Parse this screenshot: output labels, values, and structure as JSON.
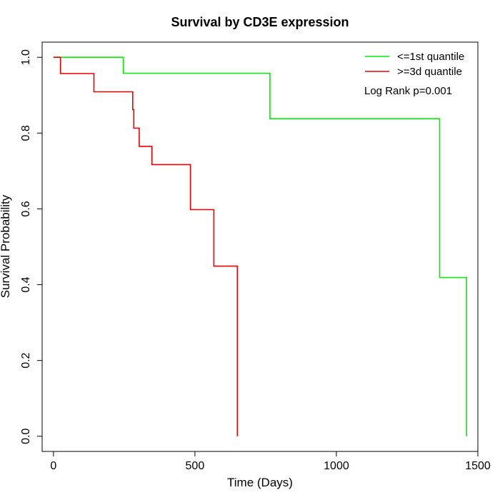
{
  "chart_data": {
    "type": "line",
    "step": true,
    "title": "Survival by CD3E expression",
    "xlabel": "Time (Days)",
    "ylabel": "Survival Probability",
    "xlim": [
      -40,
      1500
    ],
    "ylim": [
      -0.04,
      1.04
    ],
    "x_ticks": [
      0,
      500,
      1000,
      1500
    ],
    "y_ticks": [
      0.0,
      0.2,
      0.4,
      0.6,
      0.8,
      1.0
    ],
    "x_tick_labels": [
      "0",
      "500",
      "1000",
      "1500"
    ],
    "y_tick_labels": [
      "0.0",
      "0.2",
      "0.4",
      "0.6",
      "0.8",
      "1.0"
    ],
    "legend_position": "top-right",
    "annotation": "Log Rank p=0.001",
    "grid": false,
    "series": [
      {
        "name": "<=1st quantile",
        "color": "#00ee00",
        "x": [
          0,
          247,
          247,
          765,
          765,
          1365,
          1365,
          1460,
          1460
        ],
        "y": [
          1.0,
          1.0,
          0.958,
          0.958,
          0.838,
          0.838,
          0.419,
          0.419,
          0.0
        ]
      },
      {
        "name": ">=3d quantile",
        "color": "#ee0000",
        "x": [
          0,
          25,
          25,
          143,
          143,
          280,
          280,
          284,
          284,
          303,
          303,
          348,
          348,
          484,
          484,
          567,
          567,
          650,
          650
        ],
        "y": [
          1.0,
          1.0,
          0.957,
          0.957,
          0.909,
          0.909,
          0.862,
          0.862,
          0.813,
          0.813,
          0.765,
          0.765,
          0.717,
          0.717,
          0.598,
          0.598,
          0.449,
          0.449,
          0.0
        ]
      }
    ]
  }
}
